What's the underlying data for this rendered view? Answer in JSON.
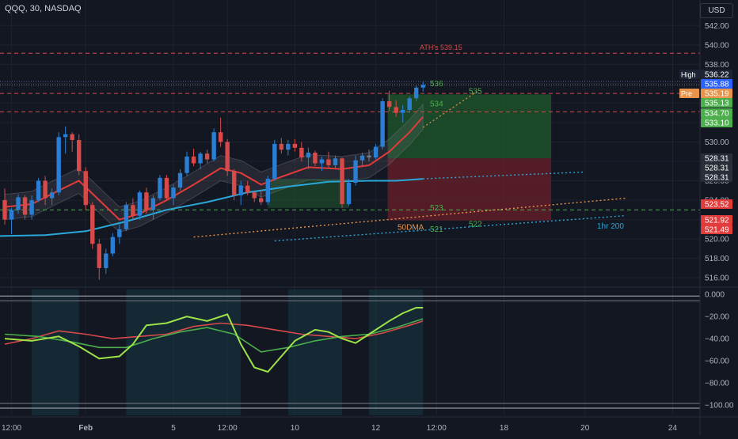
{
  "header": {
    "title": "QQQ, 30, NASDAQ",
    "currency": "USD"
  },
  "colors": {
    "bg": "#131722",
    "up": "#2a7fd4",
    "down": "#d84a4a",
    "doji": "#787b86",
    "ema": "#e23b3b",
    "dma": "#2aa8d8",
    "green": "#4cae4c",
    "lime": "#9ee34a"
  },
  "chart_data": {
    "type": "candlestick",
    "instrument": "QQQ",
    "interval": "30",
    "exchange": "NASDAQ",
    "price_axis": {
      "min": 515.2,
      "max": 543,
      "ticks": [
        516,
        518,
        520,
        522,
        524,
        526,
        528,
        530,
        532,
        534,
        536,
        538,
        540,
        542
      ]
    },
    "time_ticks": [
      {
        "label": "12:00",
        "i": 1
      },
      {
        "label": "Feb",
        "i": 12
      },
      {
        "label": "5",
        "i": 25
      },
      {
        "label": "12:00",
        "i": 33
      },
      {
        "label": "10",
        "i": 43
      },
      {
        "label": "12",
        "i": 55
      },
      {
        "label": "12:00",
        "i": 64
      },
      {
        "label": "18",
        "i": 74
      },
      {
        "label": "20",
        "i": 86
      },
      {
        "label": "24",
        "i": 99
      }
    ],
    "horizontal_levels": [
      {
        "price": 539.15,
        "label": "ATH's 539.15",
        "style": "dashed",
        "color": "#d84a4a"
      },
      {
        "price": 536.22,
        "label": "",
        "style": "dotted",
        "color": "#5d6d9a"
      },
      {
        "price": 535.88,
        "label": "",
        "style": "dotted",
        "color": "#787b86"
      },
      {
        "price": 535.0,
        "label": "",
        "style": "dashed",
        "color": "#d84a4a"
      },
      {
        "price": 533.1,
        "label": "",
        "style": "dashed",
        "color": "#d84a4a"
      },
      {
        "price": 523.0,
        "label": "",
        "style": "dashed",
        "color": "#4cae4c"
      }
    ],
    "level_labels": [
      {
        "text": "536",
        "price": 536.0
      },
      {
        "text": "535",
        "price": 535.2
      },
      {
        "text": "534",
        "price": 533.9
      },
      {
        "text": "523",
        "price": 523.2
      },
      {
        "text": "522",
        "price": 521.5
      },
      {
        "text": "521",
        "price": 521.0
      },
      {
        "text": "50DMA",
        "price": 521.2
      },
      {
        "text": "1hr 200",
        "price": 521.3
      }
    ],
    "price_tags": [
      {
        "label": "High",
        "value": "536.22",
        "color": "#1e2433"
      },
      {
        "label": "",
        "value": "535.88",
        "color": "#2962ff"
      },
      {
        "label": "Pre",
        "value": "535.19",
        "color": "#e8944a"
      },
      {
        "label": "",
        "value": "535.13",
        "color": "#4cae4c"
      },
      {
        "label": "",
        "value": "534.70",
        "color": "#4cae4c"
      },
      {
        "label": "",
        "value": "533.10",
        "color": "#4cae4c"
      },
      {
        "label": "",
        "value": "528.31",
        "color": "#2a2e39"
      },
      {
        "label": "",
        "value": "528.31",
        "color": "#2a2e39"
      },
      {
        "label": "",
        "value": "528.31",
        "color": "#2a2e39"
      },
      {
        "label": "",
        "value": "523.52",
        "color": "#e23b3b"
      },
      {
        "label": "",
        "value": "521.92",
        "color": "#e23b3b"
      },
      {
        "label": "",
        "value": "521.49",
        "color": "#e23b3b"
      }
    ],
    "position": {
      "entry": 528.31,
      "target": 534.9,
      "stop": 521.9
    },
    "candles": [
      [
        524.0,
        525.2,
        521.5,
        522.0
      ],
      [
        522.0,
        523.2,
        520.5,
        523.0
      ],
      [
        523.0,
        524.6,
        522.6,
        524.3
      ],
      [
        524.3,
        524.5,
        522.0,
        522.5
      ],
      [
        522.5,
        524.5,
        522.0,
        524.0
      ],
      [
        524.0,
        526.3,
        523.8,
        526.0
      ],
      [
        526.0,
        526.5,
        523.5,
        524.2
      ],
      [
        524.2,
        525.2,
        523.5,
        524.8
      ],
      [
        524.8,
        531.0,
        524.5,
        530.5
      ],
      [
        530.5,
        531.6,
        528.8,
        530.8
      ],
      [
        530.8,
        531.0,
        529.0,
        530.2
      ],
      [
        530.2,
        530.8,
        526.6,
        527.0
      ],
      [
        527.0,
        527.4,
        523.0,
        523.5
      ],
      [
        523.5,
        523.8,
        519.0,
        519.5
      ],
      [
        519.5,
        520.0,
        515.8,
        517.0
      ],
      [
        517.0,
        519.0,
        516.4,
        518.5
      ],
      [
        518.5,
        520.6,
        518.2,
        520.2
      ],
      [
        520.2,
        521.5,
        519.5,
        521.0
      ],
      [
        521.0,
        523.8,
        520.8,
        523.5
      ],
      [
        523.5,
        524.2,
        522.0,
        522.4
      ],
      [
        522.4,
        525.0,
        522.0,
        524.8
      ],
      [
        524.8,
        525.3,
        522.6,
        523.0
      ],
      [
        523.0,
        524.5,
        522.0,
        524.2
      ],
      [
        524.2,
        526.6,
        524.0,
        526.3
      ],
      [
        526.3,
        526.6,
        524.0,
        524.2
      ],
      [
        524.2,
        525.6,
        523.5,
        525.3
      ],
      [
        525.3,
        527.2,
        525.0,
        526.8
      ],
      [
        526.8,
        529.0,
        526.5,
        528.5
      ],
      [
        528.5,
        529.3,
        527.5,
        527.8
      ],
      [
        527.8,
        529.0,
        527.2,
        528.8
      ],
      [
        528.8,
        529.2,
        527.8,
        528.2
      ],
      [
        528.2,
        531.4,
        528.0,
        531.0
      ],
      [
        531.0,
        532.5,
        529.5,
        530.0
      ],
      [
        530.0,
        530.3,
        526.5,
        527.0
      ],
      [
        527.0,
        527.2,
        524.0,
        524.5
      ],
      [
        524.5,
        526.0,
        523.5,
        525.5
      ],
      [
        525.5,
        526.0,
        524.5,
        524.8
      ],
      [
        524.8,
        525.0,
        523.8,
        524.2
      ],
      [
        524.2,
        525.0,
        523.5,
        523.8
      ],
      [
        523.8,
        526.5,
        523.5,
        526.2
      ],
      [
        526.2,
        530.2,
        526.0,
        529.8
      ],
      [
        529.8,
        530.4,
        528.8,
        529.2
      ],
      [
        529.2,
        530.2,
        528.6,
        529.8
      ],
      [
        529.8,
        530.3,
        529.0,
        529.4
      ],
      [
        529.4,
        530.0,
        528.0,
        528.4
      ],
      [
        528.4,
        529.4,
        527.2,
        528.9
      ],
      [
        528.9,
        529.1,
        527.5,
        527.8
      ],
      [
        527.8,
        528.5,
        527.0,
        528.2
      ],
      [
        528.2,
        529.0,
        527.3,
        527.6
      ],
      [
        527.6,
        528.6,
        527.2,
        528.3
      ],
      [
        528.3,
        528.4,
        523.2,
        523.6
      ],
      [
        523.6,
        526.2,
        523.4,
        525.8
      ],
      [
        525.8,
        528.6,
        525.5,
        528.1
      ],
      [
        528.1,
        528.9,
        527.5,
        528.6
      ],
      [
        528.6,
        529.2,
        528.0,
        528.4
      ],
      [
        528.4,
        529.8,
        528.2,
        529.5
      ],
      [
        529.5,
        534.5,
        529.2,
        534.2
      ],
      [
        534.2,
        535.3,
        533.2,
        533.6
      ],
      [
        533.6,
        534.3,
        532.6,
        533.0
      ],
      [
        533.0,
        533.8,
        532.0,
        533.3
      ],
      [
        533.3,
        534.7,
        533.0,
        534.5
      ],
      [
        534.5,
        535.8,
        534.2,
        535.6
      ],
      [
        535.6,
        536.2,
        535.2,
        535.9
      ]
    ],
    "ema": [
      [
        0,
        523.3
      ],
      [
        4,
        523.6
      ],
      [
        8,
        525.0
      ],
      [
        11,
        526.0
      ],
      [
        14,
        524.0
      ],
      [
        17,
        522.0
      ],
      [
        20,
        522.6
      ],
      [
        24,
        524.0
      ],
      [
        28,
        525.6
      ],
      [
        32,
        527.3
      ],
      [
        35,
        526.8
      ],
      [
        38,
        525.6
      ],
      [
        41,
        526.4
      ],
      [
        45,
        527.4
      ],
      [
        50,
        527.2
      ],
      [
        54,
        527.6
      ],
      [
        57,
        529.0
      ],
      [
        60,
        531.0
      ],
      [
        62,
        532.6
      ]
    ],
    "dma": [
      [
        -1,
        520.3
      ],
      [
        6,
        520.4
      ],
      [
        12,
        520.8
      ],
      [
        18,
        521.8
      ],
      [
        24,
        523.0
      ],
      [
        30,
        523.8
      ],
      [
        36,
        524.8
      ],
      [
        42,
        525.4
      ],
      [
        48,
        525.9
      ],
      [
        54,
        526.0
      ],
      [
        58,
        526.0
      ],
      [
        62,
        526.2
      ]
    ],
    "oscillator": {
      "axis": {
        "min": -105,
        "max": 3,
        "ticks": [
          "0.000",
          "−20.00",
          "−40.00",
          "−60.00",
          "−80.00",
          "−100.00"
        ]
      },
      "fast": [
        [
          0,
          -40
        ],
        [
          4,
          -42
        ],
        [
          8,
          -38
        ],
        [
          11,
          -47
        ],
        [
          14,
          -58
        ],
        [
          17,
          -56
        ],
        [
          19,
          -45
        ],
        [
          21,
          -28
        ],
        [
          24,
          -26
        ],
        [
          27,
          -20
        ],
        [
          30,
          -24
        ],
        [
          33,
          -18
        ],
        [
          35,
          -45
        ],
        [
          37,
          -66
        ],
        [
          39,
          -70
        ],
        [
          41,
          -56
        ],
        [
          43,
          -42
        ],
        [
          46,
          -32
        ],
        [
          48,
          -34
        ],
        [
          50,
          -40
        ],
        [
          52,
          -44
        ],
        [
          54,
          -36
        ],
        [
          57,
          -24
        ],
        [
          59,
          -17
        ],
        [
          61,
          -12
        ],
        [
          62,
          -12
        ]
      ],
      "slow": [
        [
          0,
          -36
        ],
        [
          5,
          -38
        ],
        [
          10,
          -43
        ],
        [
          14,
          -48
        ],
        [
          18,
          -48
        ],
        [
          22,
          -40
        ],
        [
          26,
          -34
        ],
        [
          30,
          -30
        ],
        [
          34,
          -36
        ],
        [
          38,
          -52
        ],
        [
          42,
          -48
        ],
        [
          46,
          -42
        ],
        [
          50,
          -38
        ],
        [
          54,
          -36
        ],
        [
          58,
          -30
        ],
        [
          62,
          -22
        ]
      ],
      "red": [
        [
          0,
          -45
        ],
        [
          4,
          -40
        ],
        [
          8,
          -33
        ],
        [
          12,
          -36
        ],
        [
          16,
          -40
        ],
        [
          20,
          -38
        ],
        [
          24,
          -36
        ],
        [
          28,
          -29
        ],
        [
          32,
          -26
        ],
        [
          36,
          -28
        ],
        [
          40,
          -32
        ],
        [
          44,
          -36
        ],
        [
          48,
          -38
        ],
        [
          52,
          -40
        ],
        [
          56,
          -35
        ],
        [
          60,
          -28
        ],
        [
          62,
          -24
        ]
      ],
      "shaded_ranges": [
        [
          4,
          11
        ],
        [
          18,
          35
        ],
        [
          42,
          50
        ],
        [
          54,
          62
        ]
      ]
    }
  }
}
